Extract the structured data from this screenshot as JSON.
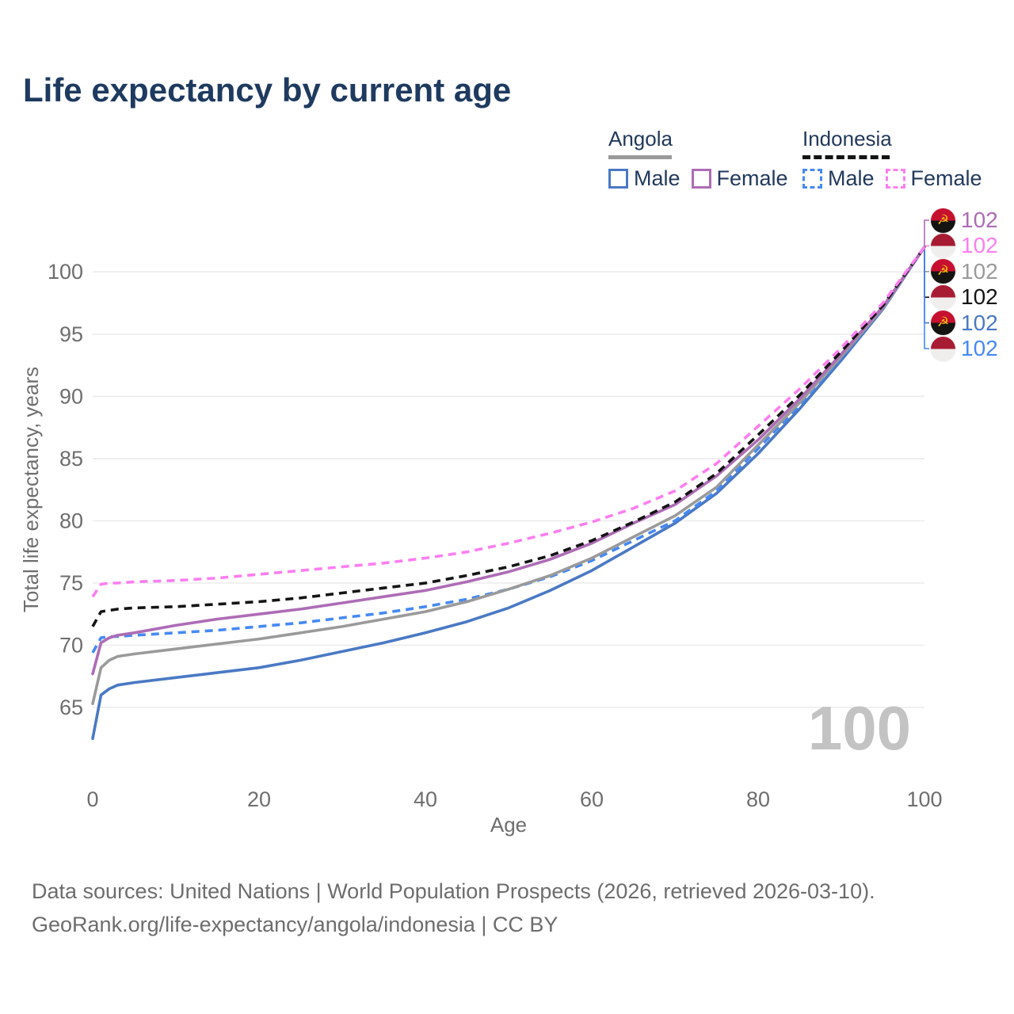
{
  "title": "Life expectancy by current age",
  "legend": {
    "groups": [
      {
        "country": "Angola",
        "line_style": "solid",
        "underline_series": "angola_total",
        "items": [
          {
            "label": "Male",
            "series": "angola_male"
          },
          {
            "label": "Female",
            "series": "angola_female"
          }
        ]
      },
      {
        "country": "Indonesia",
        "line_style": "dashed",
        "underline_series": "indonesia_total",
        "items": [
          {
            "label": "Male",
            "series": "indonesia_male"
          },
          {
            "label": "Female",
            "series": "indonesia_female"
          }
        ]
      }
    ]
  },
  "chart_data": {
    "type": "line",
    "title": "Life expectancy by current age",
    "xlabel": "Age",
    "ylabel": "Total life expectancy, years",
    "xlim": [
      0,
      100
    ],
    "ylim": [
      62,
      103
    ],
    "xticks": [
      0,
      20,
      40,
      60,
      80,
      100
    ],
    "yticks": [
      65,
      70,
      75,
      80,
      85,
      90,
      95,
      100
    ],
    "grid": "horizontal-only",
    "gridline_color": "#ececec",
    "axis_text_color": "#6e6e6e",
    "age_counter": "100",
    "age_counter_color": "#c3c3c3",
    "x": [
      0,
      1,
      2,
      3,
      5,
      10,
      15,
      20,
      25,
      30,
      35,
      40,
      45,
      50,
      55,
      60,
      65,
      70,
      75,
      80,
      85,
      90,
      95,
      100
    ],
    "series": [
      {
        "id": "angola_male",
        "country": "Angola",
        "sex": "Male",
        "color": "#4a79c4",
        "dash": false,
        "end_label": "102",
        "flag": "angola",
        "values": [
          62.5,
          66.0,
          66.5,
          66.8,
          67.0,
          67.4,
          67.8,
          68.2,
          68.8,
          69.5,
          70.2,
          71.0,
          71.9,
          73.0,
          74.4,
          76.0,
          77.9,
          79.8,
          82.2,
          85.4,
          89.0,
          92.9,
          97.0,
          102
        ]
      },
      {
        "id": "angola_total",
        "country": "Angola",
        "sex": "Both sexes",
        "color": "#9a9a9a",
        "dash": false,
        "end_label": "102",
        "flag": "angola",
        "values": [
          65.3,
          68.2,
          68.8,
          69.1,
          69.3,
          69.7,
          70.1,
          70.5,
          71.0,
          71.5,
          72.1,
          72.7,
          73.5,
          74.5,
          75.6,
          77.0,
          78.7,
          80.4,
          82.7,
          86.1,
          89.5,
          93.2,
          97.1,
          102
        ]
      },
      {
        "id": "angola_female",
        "country": "Angola",
        "sex": "Female",
        "color": "#ad6cb5",
        "dash": false,
        "end_label": "102",
        "flag": "angola",
        "values": [
          67.7,
          70.2,
          70.6,
          70.8,
          71.0,
          71.6,
          72.1,
          72.5,
          72.9,
          73.4,
          73.9,
          74.4,
          75.1,
          75.9,
          76.9,
          78.2,
          79.8,
          81.3,
          83.6,
          86.5,
          89.8,
          93.4,
          97.2,
          102
        ]
      },
      {
        "id": "indonesia_male",
        "country": "Indonesia",
        "sex": "Male",
        "color": "#4689f3",
        "dash": true,
        "end_label": "102",
        "flag": "indonesia",
        "values": [
          69.4,
          70.6,
          70.7,
          70.7,
          70.8,
          71.0,
          71.2,
          71.5,
          71.8,
          72.2,
          72.6,
          73.1,
          73.7,
          74.5,
          75.5,
          76.8,
          78.4,
          80.0,
          82.4,
          85.8,
          89.3,
          93.1,
          97.1,
          102
        ]
      },
      {
        "id": "indonesia_total",
        "country": "Indonesia",
        "sex": "Both sexes",
        "color": "#141414",
        "dash": true,
        "end_label": "102",
        "flag": "indonesia",
        "values": [
          71.5,
          72.7,
          72.8,
          72.9,
          73.0,
          73.1,
          73.3,
          73.5,
          73.8,
          74.2,
          74.6,
          75.0,
          75.6,
          76.3,
          77.2,
          78.4,
          79.9,
          81.5,
          83.8,
          86.9,
          90.1,
          93.6,
          97.3,
          102
        ]
      },
      {
        "id": "indonesia_female",
        "country": "Indonesia",
        "sex": "Female",
        "color": "#fc7ef0",
        "dash": true,
        "end_label": "102",
        "flag": "indonesia",
        "values": [
          73.9,
          74.9,
          75.0,
          75.0,
          75.1,
          75.2,
          75.4,
          75.7,
          76.0,
          76.3,
          76.6,
          77.0,
          77.5,
          78.2,
          79.0,
          79.9,
          81.0,
          82.4,
          84.6,
          87.6,
          90.6,
          93.9,
          97.5,
          102
        ]
      }
    ],
    "draw_order": [
      "angola_male",
      "indonesia_male",
      "angola_total",
      "angola_female",
      "indonesia_total",
      "indonesia_female"
    ],
    "label_order": [
      "angola_female",
      "indonesia_female",
      "angola_total",
      "indonesia_total",
      "angola_male",
      "indonesia_male"
    ],
    "flag_colors": {
      "angola_top": "#c7102f",
      "angola_bottom": "#161412",
      "angola_emblem": "#f0b90f",
      "indonesia_top": "#a81c33",
      "indonesia_bottom": "#f0eeec"
    }
  },
  "footer": {
    "line1": "Data sources: United Nations | World Population Prospects (2026, retrieved 2026-03-10).",
    "line2": "GeoRank.org/life-expectancy/angola/indonesia | CC BY"
  }
}
